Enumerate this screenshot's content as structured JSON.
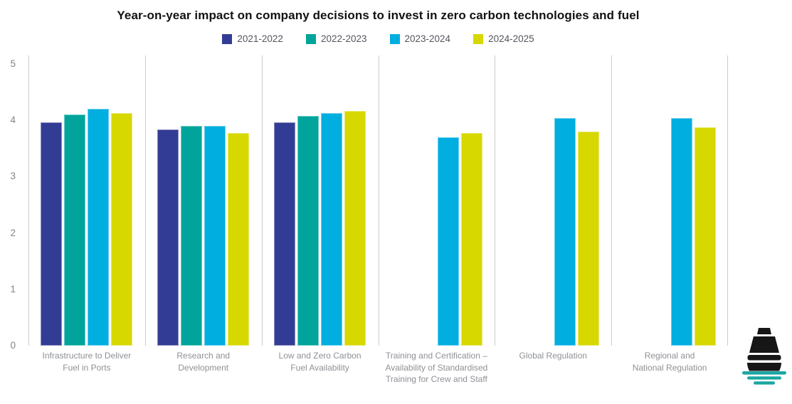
{
  "title": "Year-on-year impact on company decisions to invest in zero carbon technologies and fuel",
  "colors": {
    "series_2021_2022": "#333C94",
    "series_2022_2023": "#00A49B",
    "series_2023_2024": "#00AEE0",
    "series_2024_2025": "#D7D800",
    "grid_line": "#CCCCCC",
    "axis_text": "#82848A",
    "category_text": "#8E9095",
    "legend_text": "#54555E",
    "title_text": "#121212",
    "logo_black": "#161616",
    "logo_teal": "#1CA6A0"
  },
  "chart_data": {
    "type": "bar",
    "title": "Year-on-year impact on company decisions to invest in zero carbon technologies and fuel",
    "categories": [
      "Infrastructure to Deliver Fuel in Ports",
      "Research and Development",
      "Low and Zero Carbon Fuel Availability",
      "Training and Certification – Availability of Standardised Training for Crew and Staff",
      "Global Regulation",
      "Regional and National Regulation"
    ],
    "category_label_lines": [
      [
        "Infrastructure to Deliver",
        "Fuel in Ports"
      ],
      [
        "Research and",
        "Development"
      ],
      [
        "Low and Zero Carbon",
        "Fuel Availability"
      ],
      [
        "Training and Certification –",
        "Availability of Standardised",
        "Training for Crew and Staff"
      ],
      [
        "Global Regulation"
      ],
      [
        "Regional and",
        "National Regulation"
      ]
    ],
    "series": [
      {
        "name": "2021-2022",
        "color": "#333C94",
        "values": [
          3.97,
          3.84,
          3.97,
          null,
          null,
          null
        ]
      },
      {
        "name": "2022-2023",
        "color": "#00A49B",
        "values": [
          4.1,
          3.9,
          4.08,
          null,
          null,
          null
        ]
      },
      {
        "name": "2023-2024",
        "color": "#00AEE0",
        "values": [
          4.21,
          3.9,
          4.13,
          3.7,
          4.04,
          4.04
        ]
      },
      {
        "name": "2024-2025",
        "color": "#D7D800",
        "values": [
          4.13,
          3.77,
          4.17,
          3.78,
          3.8,
          3.88
        ]
      }
    ],
    "xlabel": "",
    "ylabel": "",
    "ylim": [
      0,
      5
    ],
    "yticks": [
      0,
      1,
      2,
      3,
      4,
      5
    ],
    "grid": "vertical-separators-only",
    "legend_position": "top-center"
  },
  "logo": {
    "icon": "ship-logo"
  }
}
